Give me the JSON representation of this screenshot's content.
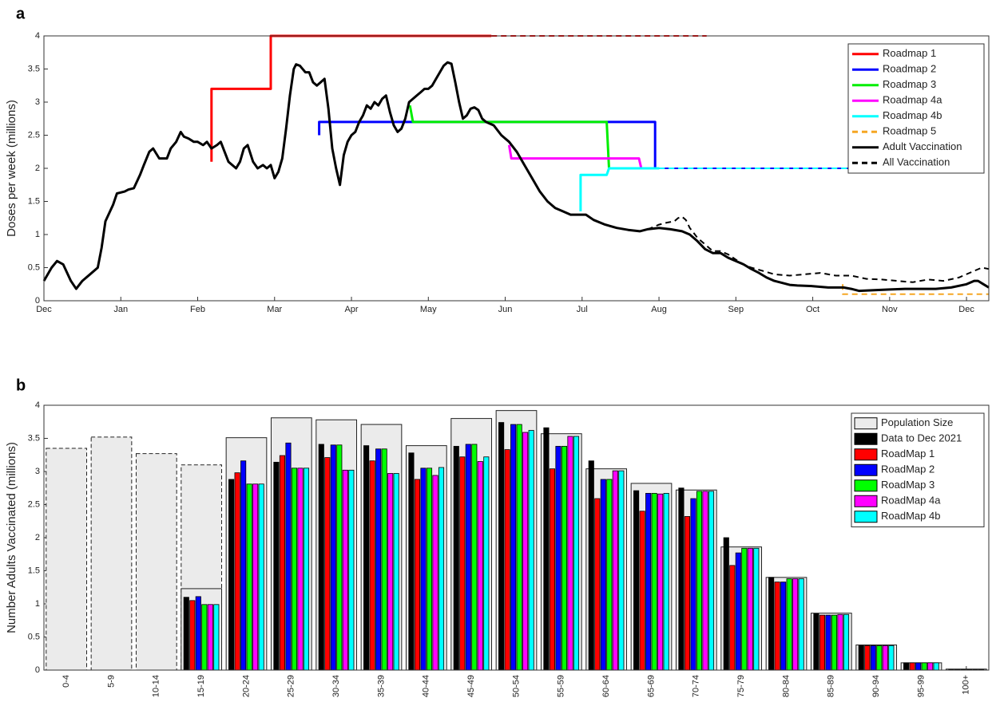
{
  "chart_data": [
    {
      "type": "line",
      "panel_label": "a",
      "ylabel": "Doses per week (millions)",
      "xlim": [
        0,
        12.29
      ],
      "ylim": [
        0,
        4
      ],
      "xticks": [
        {
          "value": 0,
          "label": "Dec"
        },
        {
          "value": 1,
          "label": "Jan"
        },
        {
          "value": 2,
          "label": "Feb"
        },
        {
          "value": 3,
          "label": "Mar"
        },
        {
          "value": 4,
          "label": "Apr"
        },
        {
          "value": 5,
          "label": "May"
        },
        {
          "value": 6,
          "label": "Jun"
        },
        {
          "value": 7,
          "label": "Jul"
        },
        {
          "value": 8,
          "label": "Aug"
        },
        {
          "value": 9,
          "label": "Sep"
        },
        {
          "value": 10,
          "label": "Oct"
        },
        {
          "value": 11,
          "label": "Nov"
        },
        {
          "value": 12,
          "label": "Dec"
        }
      ],
      "yticks": [
        0,
        0.5,
        1,
        1.5,
        2,
        2.5,
        3,
        3.5,
        4
      ],
      "legend": "upper-right",
      "series": [
        {
          "name": "Roadmap 1",
          "color": "#ff0000",
          "style": "solid",
          "x": [
            2.18,
            2.18,
            2.95,
            2.95,
            5.82
          ],
          "values": [
            2.1,
            3.2,
            3.2,
            4.0,
            4.0
          ],
          "projection": {
            "x": [
              5.82,
              8.62
            ],
            "values": [
              4.0,
              4.0
            ]
          }
        },
        {
          "name": "Roadmap 2",
          "color": "#0000ff",
          "style": "solid",
          "x": [
            3.58,
            3.58,
            7.95,
            7.95
          ],
          "values": [
            2.5,
            2.7,
            2.7,
            2.0
          ],
          "projection": {
            "x": [
              7.95,
              11.07
            ],
            "values": [
              2.0,
              2.0
            ]
          }
        },
        {
          "name": "Roadmap 3",
          "color": "#00ee00",
          "style": "solid",
          "x": [
            4.76,
            4.8,
            7.32,
            7.35,
            8.0
          ],
          "values": [
            2.95,
            2.7,
            2.7,
            2.0,
            2.0
          ],
          "projection": {
            "x": [
              8.0,
              10.9
            ],
            "values": [
              2.0,
              2.0
            ]
          }
        },
        {
          "name": "Roadmap 4a",
          "color": "#ff00ff",
          "style": "solid",
          "x": [
            6.05,
            6.08,
            7.74,
            7.77,
            8.0
          ],
          "values": [
            2.35,
            2.15,
            2.15,
            2.0,
            2.0
          ],
          "projection": {
            "x": [
              8.0,
              10.95
            ],
            "values": [
              2.0,
              2.0
            ]
          }
        },
        {
          "name": "Roadmap 4b",
          "color": "#00ffff",
          "style": "solid",
          "x": [
            6.98,
            6.98,
            7.32,
            7.35,
            8.0
          ],
          "values": [
            1.35,
            1.9,
            1.9,
            2.0,
            2.0
          ],
          "projection": {
            "x": [
              8.0,
              11.07
            ],
            "values": [
              2.0,
              2.0
            ]
          }
        },
        {
          "name": "Roadmap 5",
          "color": "#f5a623",
          "style": "dashed",
          "x": [
            10.39,
            10.39,
            12.29
          ],
          "values": [
            0.25,
            0.1,
            0.1
          ]
        },
        {
          "name": "Adult Vaccination",
          "color": "#000000",
          "style": "solid",
          "x": [
            0,
            0.1,
            0.17,
            0.25,
            0.35,
            0.42,
            0.5,
            0.6,
            0.7,
            0.75,
            0.8,
            0.9,
            0.95,
            1.05,
            1.1,
            1.17,
            1.25,
            1.3,
            1.37,
            1.42,
            1.5,
            1.6,
            1.65,
            1.72,
            1.78,
            1.82,
            1.88,
            1.95,
            2.0,
            2.07,
            2.12,
            2.18,
            2.25,
            2.3,
            2.35,
            2.4,
            2.45,
            2.5,
            2.55,
            2.6,
            2.65,
            2.72,
            2.78,
            2.85,
            2.9,
            2.95,
            3.0,
            3.05,
            3.1,
            3.15,
            3.2,
            3.25,
            3.28,
            3.33,
            3.4,
            3.45,
            3.5,
            3.55,
            3.6,
            3.65,
            3.7,
            3.75,
            3.8,
            3.85,
            3.9,
            3.95,
            4.0,
            4.05,
            4.1,
            4.15,
            4.2,
            4.25,
            4.3,
            4.35,
            4.4,
            4.45,
            4.5,
            4.55,
            4.6,
            4.65,
            4.7,
            4.75,
            4.8,
            4.85,
            4.9,
            4.95,
            5.0,
            5.05,
            5.1,
            5.15,
            5.2,
            5.25,
            5.3,
            5.35,
            5.4,
            5.45,
            5.5,
            5.55,
            5.6,
            5.65,
            5.7,
            5.75,
            5.85,
            5.95,
            6.05,
            6.15,
            6.25,
            6.35,
            6.45,
            6.55,
            6.65,
            6.75,
            6.85,
            6.95,
            7.05,
            7.15,
            7.3,
            7.45,
            7.6,
            7.75,
            7.85,
            8.0,
            8.15,
            8.3,
            8.4,
            8.5,
            8.6,
            8.7,
            8.8,
            8.9,
            9.0,
            9.1,
            9.2,
            9.3,
            9.4,
            9.5,
            9.6,
            9.7,
            9.8,
            10.0,
            10.2,
            10.4,
            10.5,
            10.6,
            10.8,
            11.0,
            11.2,
            11.4,
            11.6,
            11.8,
            12.0,
            12.1,
            12.15,
            12.22,
            12.29
          ],
          "values": [
            0.3,
            0.5,
            0.6,
            0.55,
            0.3,
            0.18,
            0.3,
            0.4,
            0.5,
            0.8,
            1.2,
            1.45,
            1.62,
            1.65,
            1.68,
            1.7,
            1.9,
            2.05,
            2.25,
            2.3,
            2.15,
            2.15,
            2.3,
            2.4,
            2.55,
            2.48,
            2.45,
            2.4,
            2.4,
            2.35,
            2.4,
            2.3,
            2.35,
            2.4,
            2.25,
            2.1,
            2.05,
            2.0,
            2.1,
            2.3,
            2.35,
            2.1,
            2.0,
            2.05,
            2.0,
            2.05,
            1.85,
            1.95,
            2.15,
            2.6,
            3.1,
            3.5,
            3.57,
            3.55,
            3.45,
            3.45,
            3.3,
            3.25,
            3.3,
            3.35,
            2.9,
            2.3,
            2.0,
            1.75,
            2.2,
            2.4,
            2.5,
            2.55,
            2.7,
            2.8,
            2.95,
            2.9,
            3.0,
            2.95,
            3.05,
            3.1,
            2.85,
            2.65,
            2.55,
            2.6,
            2.75,
            3.0,
            3.05,
            3.1,
            3.15,
            3.2,
            3.2,
            3.25,
            3.35,
            3.45,
            3.55,
            3.6,
            3.58,
            3.3,
            3.0,
            2.75,
            2.8,
            2.9,
            2.92,
            2.88,
            2.75,
            2.7,
            2.65,
            2.5,
            2.4,
            2.25,
            2.05,
            1.85,
            1.65,
            1.5,
            1.4,
            1.35,
            1.3,
            1.3,
            1.3,
            1.22,
            1.15,
            1.1,
            1.07,
            1.05,
            1.08,
            1.1,
            1.08,
            1.05,
            1.0,
            0.9,
            0.78,
            0.72,
            0.72,
            0.65,
            0.6,
            0.55,
            0.48,
            0.42,
            0.35,
            0.3,
            0.27,
            0.24,
            0.23,
            0.22,
            0.2,
            0.2,
            0.18,
            0.15,
            0.16,
            0.17,
            0.18,
            0.18,
            0.18,
            0.2,
            0.25,
            0.3,
            0.3,
            0.25,
            0.2
          ]
        },
        {
          "name": "All Vaccination",
          "color": "#000000",
          "style": "dashed",
          "x": [
            7.85,
            7.9,
            8.0,
            8.1,
            8.2,
            8.25,
            8.3,
            8.35,
            8.4,
            8.5,
            8.6,
            8.7,
            8.8,
            8.9,
            9.0,
            9.1,
            9.2,
            9.35,
            9.5,
            9.7,
            9.9,
            10.1,
            10.3,
            10.5,
            10.7,
            10.9,
            11.1,
            11.3,
            11.5,
            11.7,
            11.9,
            12.1,
            12.2,
            12.29
          ],
          "values": [
            1.08,
            1.1,
            1.15,
            1.18,
            1.2,
            1.25,
            1.27,
            1.22,
            1.1,
            0.95,
            0.85,
            0.75,
            0.75,
            0.7,
            0.62,
            0.55,
            0.5,
            0.45,
            0.4,
            0.38,
            0.4,
            0.42,
            0.38,
            0.38,
            0.33,
            0.32,
            0.3,
            0.28,
            0.32,
            0.3,
            0.35,
            0.45,
            0.5,
            0.48
          ]
        }
      ]
    },
    {
      "type": "bar",
      "panel_label": "b",
      "ylabel": "Number Adults Vaccinated (millions)",
      "categories": [
        "0-4",
        "5-9",
        "10-14",
        "15-19",
        "20-24",
        "25-29",
        "30-34",
        "35-39",
        "40-44",
        "45-49",
        "50-54",
        "55-59",
        "60-64",
        "65-69",
        "70-74",
        "75-79",
        "80-84",
        "85-89",
        "90-94",
        "95-99",
        "100+"
      ],
      "ylim": [
        0,
        4
      ],
      "yticks": [
        0,
        0.5,
        1,
        1.5,
        2,
        2.5,
        3,
        3.5,
        4
      ],
      "legend": "upper-right",
      "series": [
        {
          "name": "Population Size",
          "color": "#ebebeb",
          "role": "background",
          "values": [
            3.35,
            3.52,
            3.27,
            3.1,
            3.51,
            3.81,
            3.78,
            3.71,
            3.39,
            3.8,
            3.92,
            3.57,
            3.04,
            2.82,
            2.72,
            1.86,
            1.4,
            0.86,
            0.38,
            0.11,
            0.015
          ],
          "dashed_outline": [
            true,
            true,
            true,
            true,
            false,
            false,
            false,
            false,
            false,
            false,
            false,
            false,
            false,
            false,
            false,
            false,
            false,
            false,
            false,
            false,
            false
          ],
          "eligible_values": [
            null,
            null,
            null,
            1.23,
            null,
            null,
            null,
            null,
            null,
            null,
            null,
            null,
            null,
            null,
            null,
            null,
            null,
            null,
            null,
            null,
            null
          ]
        },
        {
          "name": "Data to Dec 2021",
          "color": "#000000",
          "values": [
            null,
            null,
            null,
            1.1,
            2.88,
            3.14,
            3.41,
            3.39,
            3.28,
            3.38,
            3.74,
            3.66,
            3.16,
            2.71,
            2.75,
            2.0,
            1.4,
            0.85,
            0.37,
            0.11,
            0.01
          ]
        },
        {
          "name": "RoadMap 1",
          "color": "#ff0000",
          "values": [
            null,
            null,
            null,
            1.05,
            2.98,
            3.24,
            3.21,
            3.16,
            2.88,
            3.22,
            3.33,
            3.04,
            2.59,
            2.4,
            2.32,
            1.58,
            1.33,
            0.83,
            0.37,
            0.11,
            0.01
          ]
        },
        {
          "name": "RoadMap 2",
          "color": "#0000ff",
          "values": [
            null,
            null,
            null,
            1.11,
            3.16,
            3.43,
            3.4,
            3.34,
            3.05,
            3.41,
            3.71,
            3.38,
            2.88,
            2.67,
            2.59,
            1.77,
            1.33,
            0.83,
            0.37,
            0.11,
            0.01
          ]
        },
        {
          "name": "RoadMap 3",
          "color": "#00ff00",
          "values": [
            null,
            null,
            null,
            0.99,
            2.81,
            3.05,
            3.4,
            3.34,
            3.05,
            3.41,
            3.71,
            3.38,
            2.88,
            2.67,
            2.7,
            1.84,
            1.38,
            0.83,
            0.37,
            0.11,
            0.01
          ]
        },
        {
          "name": "RoadMap 4a",
          "color": "#ff00ff",
          "values": [
            null,
            null,
            null,
            0.99,
            2.81,
            3.05,
            3.02,
            2.97,
            2.94,
            3.15,
            3.59,
            3.53,
            3.01,
            2.66,
            2.7,
            1.84,
            1.38,
            0.84,
            0.37,
            0.11,
            0.01
          ]
        },
        {
          "name": "RoadMap 4b",
          "color": "#00ffff",
          "values": [
            null,
            null,
            null,
            0.99,
            2.81,
            3.05,
            3.02,
            2.97,
            3.06,
            3.22,
            3.62,
            3.53,
            3.01,
            2.67,
            2.7,
            1.84,
            1.38,
            0.84,
            0.37,
            0.11,
            0.01
          ]
        }
      ]
    }
  ]
}
